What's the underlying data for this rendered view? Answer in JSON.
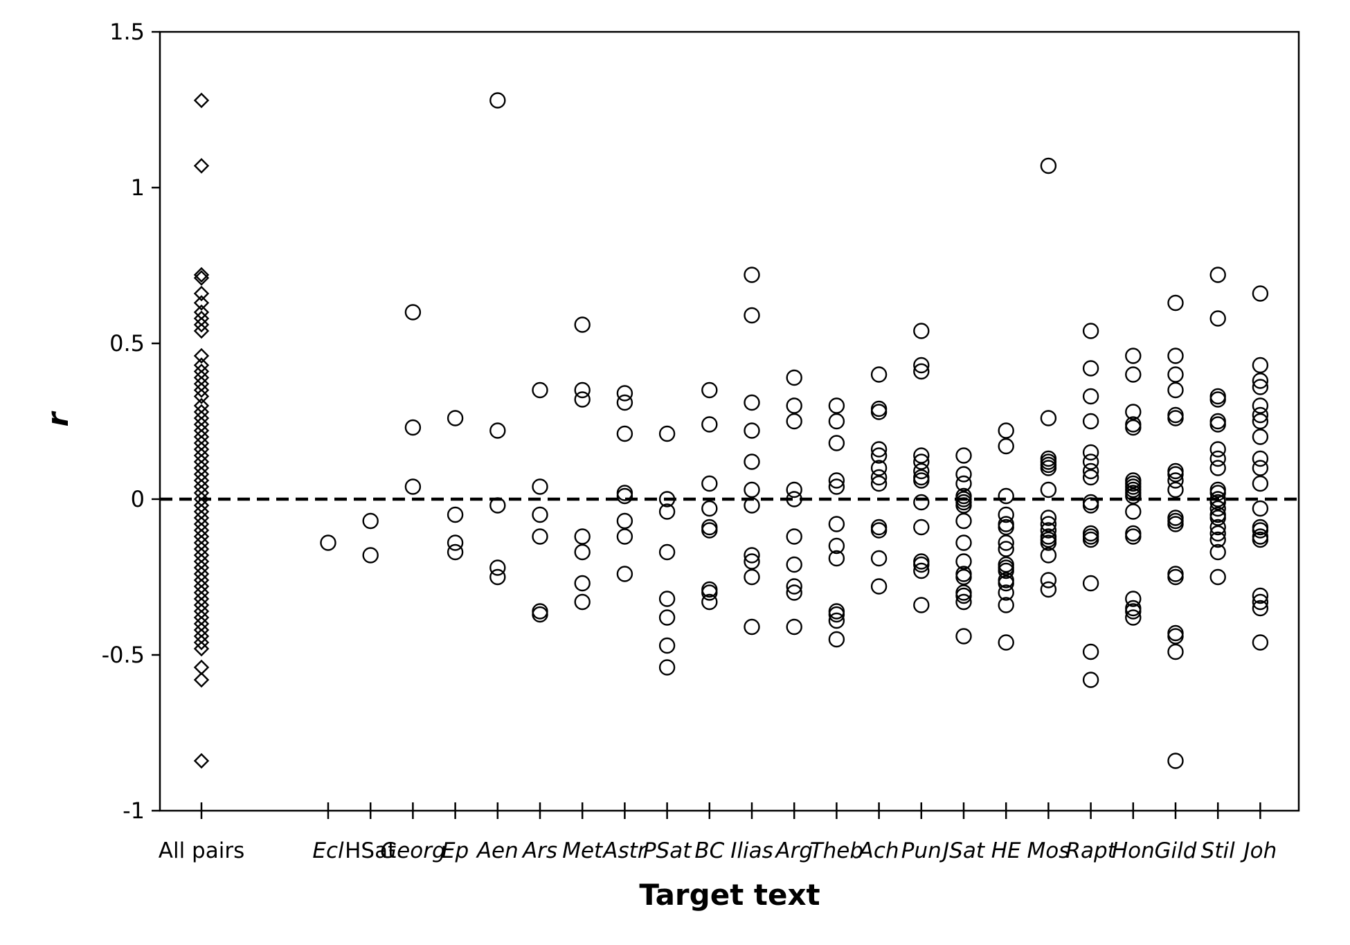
{
  "chart_data": {
    "type": "scatter",
    "title": "",
    "xlabel": "Target text",
    "ylabel": "r",
    "ylim": [
      -1,
      1.5
    ],
    "yticks": [
      -1,
      -0.5,
      0,
      0.5,
      1,
      1.5
    ],
    "ytick_labels": [
      "-1",
      "-0.5",
      "0",
      "0.5",
      "1",
      "1.5"
    ],
    "grid": false,
    "legend": "none",
    "reference_line": {
      "y": 0,
      "style": "dashed"
    },
    "categories": [
      "All pairs",
      "Ecl",
      "HSat",
      "Georg",
      "Ep",
      "Aen",
      "Ars",
      "Met",
      "Astr",
      "PSat",
      "BC",
      "Ilias",
      "Arg",
      "Theb",
      "Ach",
      "Pun",
      "JSat",
      "HE",
      "Mos",
      "Rapt",
      "Hon",
      "Gild",
      "Stil",
      "Joh"
    ],
    "category_styles": [
      "plain",
      "italic",
      "plain",
      "italic",
      "italic",
      "italic",
      "italic",
      "italic",
      "italic",
      "italic",
      "italic",
      "italic",
      "italic",
      "italic",
      "italic",
      "italic",
      "italic",
      "italic",
      "italic",
      "italic",
      "italic",
      "italic",
      "italic",
      "italic"
    ],
    "series": [
      {
        "marker": "diamond",
        "points": [
          {
            "x": "All pairs",
            "y": [
              1.28,
              1.07,
              0.72,
              0.71,
              0.66,
              0.63,
              0.6,
              0.58,
              0.56,
              0.54,
              0.46,
              0.43,
              0.41,
              0.39,
              0.37,
              0.35,
              0.33,
              0.3,
              0.28,
              0.26,
              0.24,
              0.22,
              0.2,
              0.18,
              0.16,
              0.14,
              0.12,
              0.1,
              0.08,
              0.06,
              0.04,
              0.02,
              0.0,
              -0.02,
              -0.04,
              -0.06,
              -0.08,
              -0.1,
              -0.12,
              -0.14,
              -0.16,
              -0.18,
              -0.2,
              -0.22,
              -0.24,
              -0.26,
              -0.28,
              -0.3,
              -0.32,
              -0.34,
              -0.36,
              -0.38,
              -0.4,
              -0.42,
              -0.44,
              -0.46,
              -0.48,
              -0.54,
              -0.58,
              -0.84
            ]
          }
        ]
      },
      {
        "marker": "circle",
        "points": [
          {
            "x": "Ecl",
            "y": [
              -0.14
            ]
          },
          {
            "x": "HSat",
            "y": [
              -0.07,
              -0.18
            ]
          },
          {
            "x": "Georg",
            "y": [
              0.6,
              0.23,
              0.04
            ]
          },
          {
            "x": "Ep",
            "y": [
              0.26,
              -0.05,
              -0.14,
              -0.17
            ]
          },
          {
            "x": "Aen",
            "y": [
              1.28,
              0.22,
              -0.02,
              -0.22,
              -0.25
            ]
          },
          {
            "x": "Ars",
            "y": [
              0.35,
              0.04,
              -0.05,
              -0.12,
              -0.36,
              -0.37
            ]
          },
          {
            "x": "Met",
            "y": [
              0.56,
              0.35,
              0.32,
              -0.12,
              -0.17,
              -0.27,
              -0.33
            ]
          },
          {
            "x": "Astr",
            "y": [
              0.34,
              0.31,
              0.21,
              0.02,
              0.01,
              -0.07,
              -0.12,
              -0.24
            ]
          },
          {
            "x": "PSat",
            "y": [
              0.21,
              0.0,
              -0.04,
              -0.17,
              -0.32,
              -0.38,
              -0.47,
              -0.54
            ]
          },
          {
            "x": "BC",
            "y": [
              0.35,
              0.24,
              0.05,
              -0.03,
              -0.09,
              -0.1,
              -0.29,
              -0.3,
              -0.33
            ]
          },
          {
            "x": "Ilias",
            "y": [
              0.72,
              0.59,
              0.31,
              0.22,
              0.12,
              0.03,
              -0.02,
              -0.18,
              -0.2,
              -0.25,
              -0.41
            ]
          },
          {
            "x": "Arg",
            "y": [
              0.39,
              0.3,
              0.25,
              0.03,
              0.0,
              -0.12,
              -0.21,
              -0.28,
              -0.3,
              -0.41
            ]
          },
          {
            "x": "Theb",
            "y": [
              0.3,
              0.25,
              0.18,
              0.06,
              0.04,
              -0.08,
              -0.15,
              -0.19,
              -0.36,
              -0.37,
              -0.39,
              -0.45
            ]
          },
          {
            "x": "Ach",
            "y": [
              0.4,
              0.29,
              0.28,
              0.16,
              0.14,
              0.1,
              0.07,
              0.05,
              -0.09,
              -0.1,
              -0.19,
              -0.28
            ]
          },
          {
            "x": "Pun",
            "y": [
              0.54,
              0.43,
              0.41,
              0.14,
              0.12,
              0.09,
              0.07,
              0.06,
              -0.01,
              -0.09,
              -0.2,
              -0.21,
              -0.23,
              -0.34
            ]
          },
          {
            "x": "JSat",
            "y": [
              0.14,
              0.08,
              0.05,
              0.01,
              0.0,
              -0.01,
              -0.02,
              -0.07,
              -0.14,
              -0.2,
              -0.24,
              -0.25,
              -0.3,
              -0.31,
              -0.33,
              -0.44
            ]
          },
          {
            "x": "HE",
            "y": [
              0.22,
              0.17,
              0.01,
              -0.05,
              -0.08,
              -0.09,
              -0.14,
              -0.16,
              -0.21,
              -0.22,
              -0.23,
              -0.26,
              -0.27,
              -0.3,
              -0.34,
              -0.46
            ]
          },
          {
            "x": "Mos",
            "y": [
              1.07,
              0.26,
              0.13,
              0.12,
              0.11,
              0.1,
              0.03,
              -0.06,
              -0.08,
              -0.1,
              -0.12,
              -0.13,
              -0.14,
              -0.18,
              -0.26,
              -0.29
            ]
          },
          {
            "x": "Rapt",
            "y": [
              0.54,
              0.42,
              0.33,
              0.25,
              0.15,
              0.12,
              0.09,
              0.07,
              -0.01,
              -0.02,
              -0.11,
              -0.12,
              -0.13,
              -0.27,
              -0.49,
              -0.58
            ]
          },
          {
            "x": "Hon",
            "y": [
              0.46,
              0.4,
              0.28,
              0.24,
              0.23,
              0.06,
              0.05,
              0.04,
              0.03,
              0.02,
              0.01,
              -0.04,
              -0.11,
              -0.12,
              -0.32,
              -0.35,
              -0.36,
              -0.38
            ]
          },
          {
            "x": "Gild",
            "y": [
              0.63,
              0.46,
              0.4,
              0.35,
              0.27,
              0.26,
              0.09,
              0.08,
              0.06,
              0.03,
              -0.06,
              -0.07,
              -0.08,
              -0.24,
              -0.25,
              -0.43,
              -0.44,
              -0.49,
              -0.84
            ]
          },
          {
            "x": "Stil",
            "y": [
              0.72,
              0.58,
              0.33,
              0.32,
              0.25,
              0.24,
              0.16,
              0.13,
              0.1,
              0.03,
              0.02,
              0.0,
              -0.01,
              -0.03,
              -0.05,
              -0.06,
              -0.09,
              -0.11,
              -0.13,
              -0.17,
              -0.25
            ]
          },
          {
            "x": "Joh",
            "y": [
              0.66,
              0.43,
              0.38,
              0.36,
              0.3,
              0.27,
              0.25,
              0.2,
              0.13,
              0.1,
              0.05,
              -0.03,
              -0.09,
              -0.1,
              -0.12,
              -0.13,
              -0.31,
              -0.33,
              -0.35,
              -0.46
            ]
          }
        ]
      }
    ]
  }
}
